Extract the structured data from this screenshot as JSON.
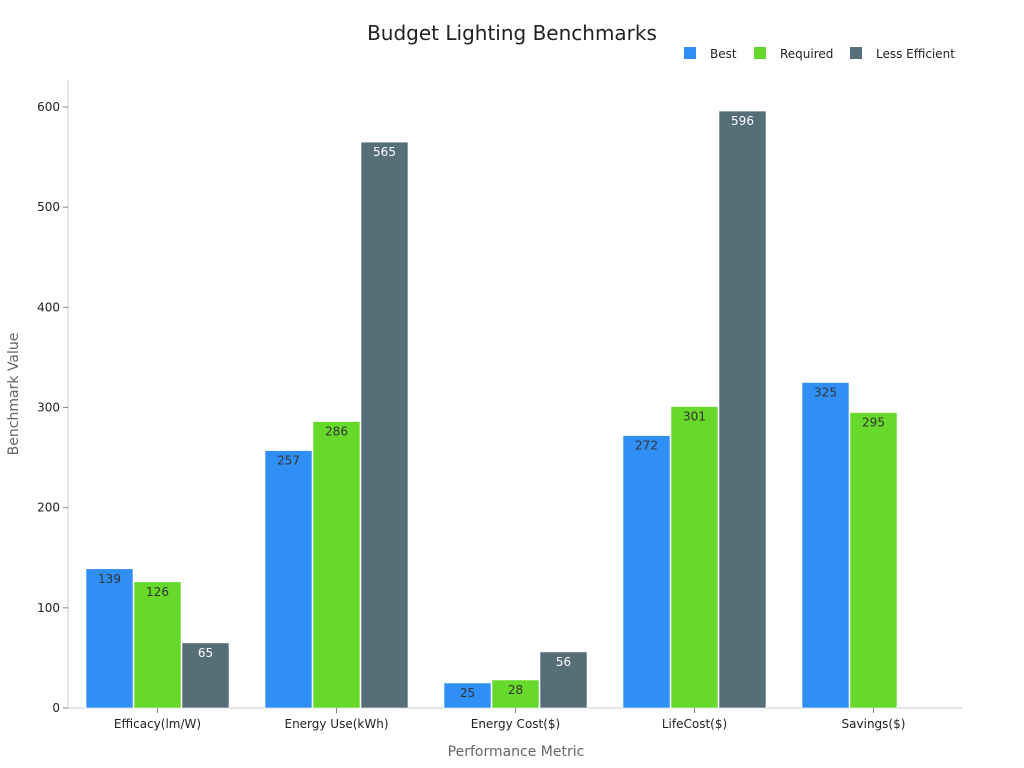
{
  "chart_data": {
    "type": "bar",
    "title": "Budget Lighting Benchmarks",
    "xlabel": "Performance Metric",
    "ylabel": "Benchmark Value",
    "categories": [
      "Efficacy(lm/W)",
      "Energy Use(kWh)",
      "Energy Cost($)",
      "LifeCost($)",
      "Savings($)"
    ],
    "series": [
      {
        "name": "Best",
        "color": "#2f8ff5",
        "values": [
          139,
          257,
          25,
          272,
          325
        ]
      },
      {
        "name": "Required",
        "color": "#66d92a",
        "values": [
          126,
          286,
          28,
          301,
          295
        ]
      },
      {
        "name": "Less Efficient",
        "color": "#556e78",
        "values": [
          65,
          565,
          56,
          596,
          null
        ]
      }
    ],
    "ylim": [
      0,
      627
    ],
    "yticks": [
      0,
      100,
      200,
      300,
      400,
      500,
      600
    ],
    "grid": false,
    "legend_position": "top-right"
  }
}
